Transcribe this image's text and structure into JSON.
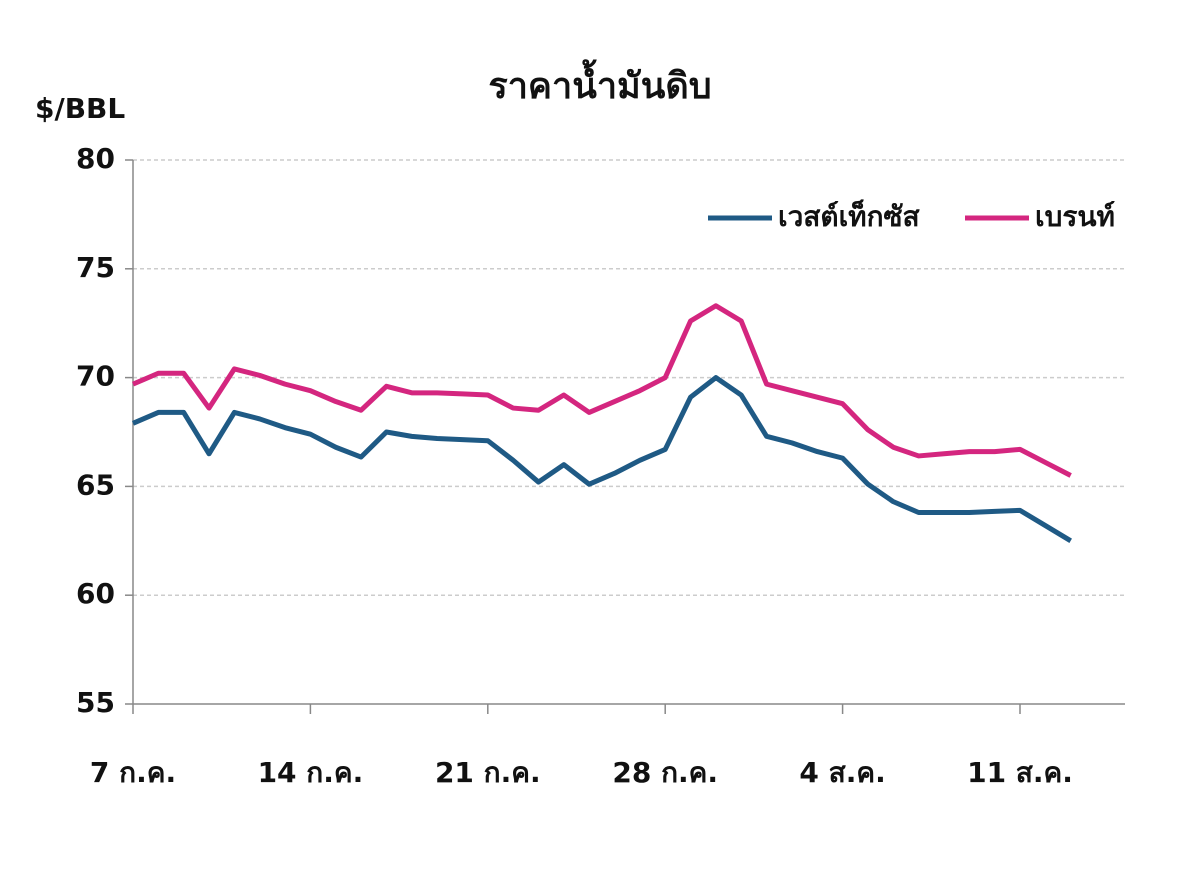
{
  "chart_data": {
    "type": "line",
    "title": "ราคาน้ำมันดิบ",
    "y_label": "$/BBL",
    "categories": [
      "7 ก.ค.",
      null,
      null,
      null,
      null,
      null,
      null,
      "14 ก.ค.",
      null,
      null,
      null,
      null,
      null,
      null,
      "21 ก.ค.",
      null,
      null,
      null,
      null,
      null,
      null,
      "28 ก.ค.",
      null,
      null,
      null,
      null,
      null,
      null,
      "4 ส.ค.",
      null,
      null,
      null,
      null,
      null,
      null,
      "11 ส.ค.",
      null,
      null
    ],
    "series": [
      {
        "name": "เวสต์เท็กซัส",
        "color": "#1f5a85",
        "values": [
          67.9,
          68.4,
          68.4,
          66.5,
          68.4,
          68.1,
          67.7,
          67.4,
          66.8,
          66.35,
          67.5,
          67.3,
          67.2,
          67.15,
          67.1,
          66.2,
          65.2,
          66.0,
          65.1,
          65.6,
          66.2,
          66.7,
          69.1,
          70.0,
          69.2,
          67.3,
          67.0,
          66.6,
          66.3,
          65.1,
          64.3,
          63.8,
          63.8,
          63.8,
          63.85,
          63.9,
          63.2,
          62.5
        ]
      },
      {
        "name": "เบรนท์",
        "color": "#d4267f",
        "values": [
          69.7,
          70.2,
          70.2,
          68.6,
          70.4,
          70.1,
          69.7,
          69.4,
          68.9,
          68.5,
          69.6,
          69.3,
          69.3,
          69.25,
          69.2,
          68.6,
          68.5,
          69.2,
          68.4,
          68.9,
          69.4,
          70.0,
          72.6,
          73.3,
          72.6,
          69.7,
          69.4,
          69.1,
          68.8,
          67.6,
          66.8,
          66.4,
          66.5,
          66.6,
          66.6,
          66.7,
          66.1,
          65.5
        ]
      }
    ],
    "ylim": [
      55,
      80
    ],
    "yticks": [
      55,
      60,
      65,
      70,
      75,
      80
    ],
    "grid": true,
    "legend": "upper right"
  }
}
